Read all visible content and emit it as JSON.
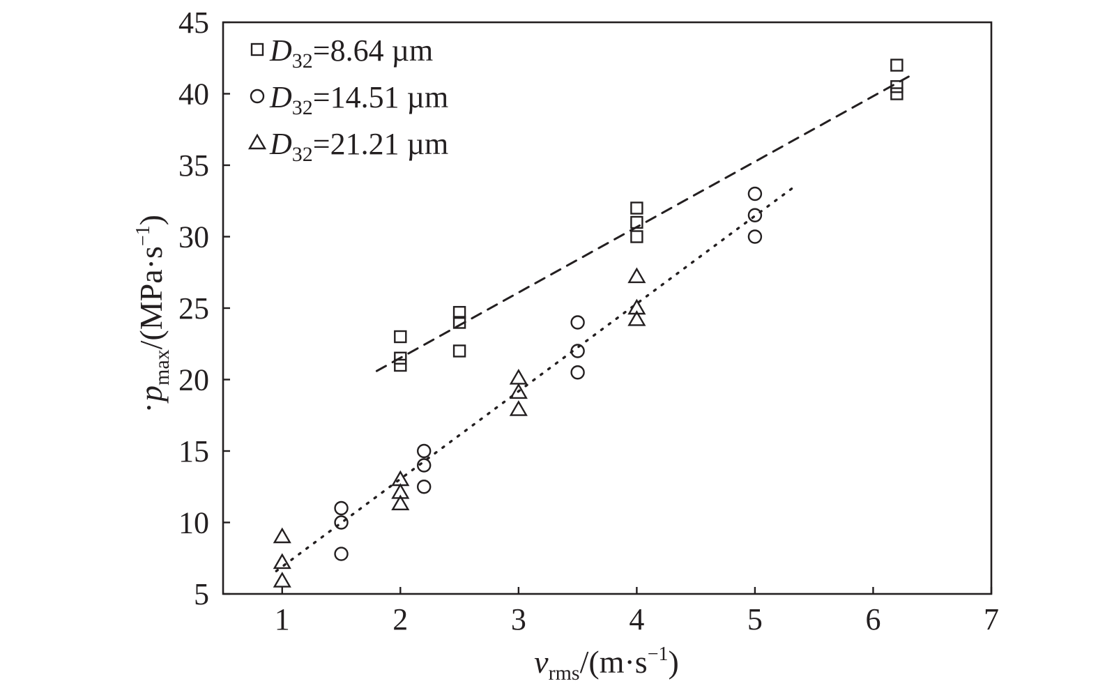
{
  "chart_data": {
    "type": "scatter",
    "xlabel": {
      "main": "v",
      "sub": "rms",
      "unit_pre": "/(m·s",
      "unit_sup": "−1",
      "unit_post": ")"
    },
    "ylabel": {
      "main": "p",
      "sub": "max",
      "unit_pre": "/(MPa·s",
      "unit_sup": "−1",
      "unit_post": ")"
    },
    "xlim": [
      0.5,
      7
    ],
    "ylim": [
      5,
      45
    ],
    "xticks": [
      1,
      2,
      3,
      4,
      5,
      6,
      7
    ],
    "yticks": [
      5,
      10,
      15,
      20,
      25,
      30,
      35,
      40,
      45
    ],
    "grid": false,
    "legend_position": "top-left",
    "series": [
      {
        "name": "D32=8.64 µm",
        "legend_label": {
          "var": "D",
          "sub": "32",
          "text": "=8.64 µm"
        },
        "marker": "square",
        "points": [
          [
            2,
            23
          ],
          [
            2,
            21.5
          ],
          [
            2,
            21
          ],
          [
            2.5,
            24.7
          ],
          [
            2.5,
            24
          ],
          [
            2.5,
            22
          ],
          [
            4,
            32
          ],
          [
            4,
            31
          ],
          [
            4,
            30
          ],
          [
            6.2,
            42
          ],
          [
            6.2,
            40.5
          ],
          [
            6.2,
            40
          ]
        ],
        "fit": {
          "style": "dashed",
          "from": [
            1.8,
            20.6
          ],
          "to": [
            6.3,
            41.2
          ]
        }
      },
      {
        "name": "D32=14.51 µm",
        "legend_label": {
          "var": "D",
          "sub": "32",
          "text": "=14.51 µm"
        },
        "marker": "circle",
        "points": [
          [
            1.5,
            11
          ],
          [
            1.5,
            10
          ],
          [
            1.5,
            7.8
          ],
          [
            2.2,
            15
          ],
          [
            2.2,
            14
          ],
          [
            2.2,
            12.5
          ],
          [
            3.5,
            24
          ],
          [
            3.5,
            22
          ],
          [
            3.5,
            20.5
          ],
          [
            5,
            33
          ],
          [
            5,
            31.5
          ],
          [
            5,
            30
          ]
        ],
        "fit": {
          "style": "dotted",
          "from": [
            0.95,
            6.6
          ],
          "to": [
            5.35,
            33.6
          ]
        }
      },
      {
        "name": "D32=21.21 µm",
        "legend_label": {
          "var": "D",
          "sub": "32",
          "text": "=21.21 µm"
        },
        "marker": "triangle",
        "points": [
          [
            1,
            9
          ],
          [
            1,
            7.2
          ],
          [
            1,
            5.9
          ],
          [
            2,
            13
          ],
          [
            2,
            12.1
          ],
          [
            2,
            11.3
          ],
          [
            3,
            20.1
          ],
          [
            3,
            19.1
          ],
          [
            3,
            17.9
          ],
          [
            4,
            27.2
          ],
          [
            4,
            25
          ],
          [
            4,
            24.2
          ]
        ],
        "fit": null
      }
    ]
  }
}
